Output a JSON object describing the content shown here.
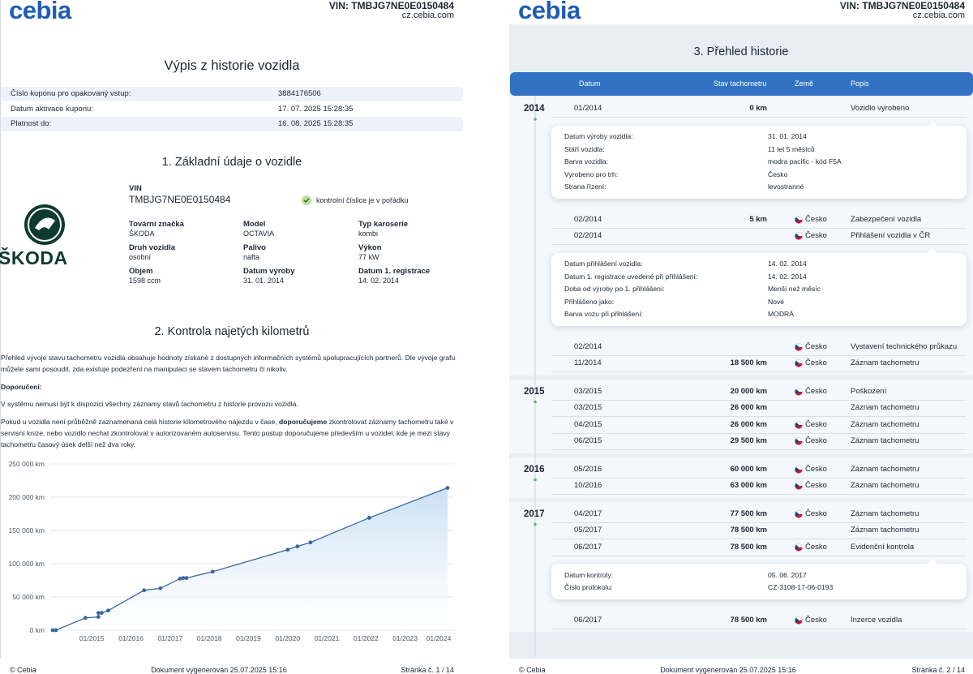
{
  "pages": [
    {
      "logo": "cebia",
      "vin": "VIN: TMBJG7NE0E0150484",
      "site": "cz.cebia.com",
      "footer": {
        "left": "© Cebia",
        "center": "Dokument vygenerován 25.07.2025 15:16",
        "right": "Stránka č. 1 / 14"
      }
    },
    {
      "logo": "cebia",
      "vin": "VIN: TMBJG7NE0E0150484",
      "site": "cz.cebia.com",
      "footer": {
        "left": "© Cebia",
        "center": "Dokument vygenerován 25.07.2025 15:16",
        "right": "Stránka č. 2 / 14"
      }
    }
  ],
  "summary": {
    "title": "Výpis z historie vozidla",
    "rows": [
      [
        "Číslo kuponu pro opakovaný vstup:",
        "3884176506"
      ],
      [
        "Datum aktivace kuponu:",
        "17. 07. 2025 15:28:35"
      ],
      [
        "Platnost do:",
        "16. 08. 2025 15:28:35"
      ]
    ]
  },
  "basic": {
    "title": "1. Základní údaje o vozidle",
    "brand": "ŠKODA",
    "vin_label": "VIN",
    "vin": "TMBJG7NE0E0150484",
    "vin_check": "kontrolní číslice je v pořádku",
    "fields": [
      [
        "Tovární značka",
        "ŠKODA"
      ],
      [
        "Model",
        "OCTAVIA"
      ],
      [
        "Typ karoserie",
        "kombi"
      ],
      [
        "Druh vozidla",
        "osobní"
      ],
      [
        "Palivo",
        "nafta"
      ],
      [
        "Výkon",
        "77 kW"
      ],
      [
        "Objem",
        "1598 ccm"
      ],
      [
        "Datum výroby",
        "31. 01. 2014"
      ],
      [
        "Datum 1. registrace",
        "14. 02. 2014"
      ]
    ]
  },
  "mileage": {
    "title": "2. Kontrola najetých kilometrů",
    "intro": "Přehled vývoje stavu tachometru vozidla obsahuje hodnoty získané z dostupných informačních systémů spolupracujících partnerů. Dle vývoje grafu můžete sami posoudit, zda existuje podezření na manipulaci se stavem tachometru či nikoliv.",
    "recommendation_heading": "Doporučení:",
    "note": "V systému nemusí být k dispozici všechny záznamy stavů tachometru z historie provozu vozidla.",
    "advice": [
      "Pokud u vozidla není průběžně zaznamenaná celá historie kilometrového nájezdu v čase,",
      "doporučujeme",
      "zkontrolovat záznamy tachometru také v servisní knize, nebo vozidlo nechat zkontrolovat v autorizovaném autoservisu. Tento postup doporučujeme především u vozidel, kde je mezi stavy tachometru časový úsek delší než dva roky."
    ]
  },
  "chart_data": {
    "type": "line",
    "color": "#3b679f",
    "grid": true,
    "x": [
      "2014-01",
      "2014-02",
      "2014-11",
      "2015-03",
      "2015-03",
      "2015-04",
      "2015-06",
      "2016-05",
      "2016-10",
      "2017-04",
      "2017-05",
      "2017-06",
      "2018-02",
      "2020-01",
      "2020-04",
      "2020-08",
      "2022-02",
      "2024-02"
    ],
    "values": [
      0,
      5,
      18500,
      20000,
      26000,
      26000,
      29500,
      60000,
      63000,
      77500,
      78500,
      78500,
      88000,
      121000,
      126000,
      132000,
      169000,
      214000
    ],
    "xlim": [
      "2014-01",
      "2024-03"
    ],
    "xticks": [
      {
        "value": "2015-01",
        "label": "01/2015"
      },
      {
        "value": "2016-01",
        "label": "01/2016"
      },
      {
        "value": "2017-01",
        "label": "01/2017"
      },
      {
        "value": "2018-01",
        "label": "01/2018"
      },
      {
        "value": "2019-01",
        "label": "01/2019"
      },
      {
        "value": "2020-01",
        "label": "01/2020"
      },
      {
        "value": "2021-01",
        "label": "01/2021"
      },
      {
        "value": "2022-01",
        "label": "01/2022"
      },
      {
        "value": "2023-01",
        "label": "01/2023"
      },
      {
        "value": "2024-01",
        "label": "01/2024"
      }
    ],
    "ylim": [
      0,
      250000
    ],
    "yticks": [
      {
        "value": 0,
        "label": "0 km"
      },
      {
        "value": 50000,
        "label": "50 000 km"
      },
      {
        "value": 100000,
        "label": "100 000 km"
      },
      {
        "value": 150000,
        "label": "150 000 km"
      },
      {
        "value": 200000,
        "label": "200 000 km"
      },
      {
        "value": 250000,
        "label": "250 000 km"
      }
    ]
  },
  "history": {
    "title": "3. Přehled historie",
    "columns": [
      "Datum",
      "Stav tachometru",
      "Země",
      "Popis"
    ],
    "years": [
      {
        "year": "2014",
        "entries": [
          {
            "date": "01/2014",
            "km": "0 km",
            "desc": "Vozidlo vyrobeno",
            "details": [
              [
                "Datum výroby vozidla:",
                "31. 01. 2014"
              ],
              [
                "Stáří vozidla:",
                "11 let 5 měsíců"
              ],
              [
                "Barva vozidla:",
                "modra pacific - kód F5A"
              ],
              [
                "Vyrobeno pro trh:",
                "Česko"
              ],
              [
                "Strana řízení:",
                "levostranné"
              ]
            ]
          },
          {
            "date": "02/2014",
            "km": "5 km",
            "country": "Česko",
            "desc": "Zabezpečení vozidla"
          },
          {
            "date": "02/2014",
            "country": "Česko",
            "desc": "Přihlášení vozidla v ČR",
            "details": [
              [
                "Datum přihlášení vozidla:",
                "14. 02. 2014"
              ],
              [
                "Datum 1. registrace uvedené při přihlášení:",
                "14. 02. 2014"
              ],
              [
                "Doba od výroby po 1. přihlášení:",
                "Menší než měsíc"
              ],
              [
                "Přihlášeno jako:",
                "Nové"
              ],
              [
                "Barva vozu při přihlášení:",
                "MODRÁ"
              ]
            ]
          },
          {
            "date": "02/2014",
            "country": "Česko",
            "desc": "Vystavení technického průkazu"
          },
          {
            "date": "11/2014",
            "km": "18 500 km",
            "country": "Česko",
            "desc": "Záznam tachometru"
          }
        ]
      },
      {
        "year": "2015",
        "entries": [
          {
            "date": "03/2015",
            "km": "20 000 km",
            "country": "Česko",
            "desc": "Poškození"
          },
          {
            "date": "03/2015",
            "km": "26 000 km",
            "desc": "Záznam tachometru"
          },
          {
            "date": "04/2015",
            "km": "26 000 km",
            "country": "Česko",
            "desc": "Záznam tachometru"
          },
          {
            "date": "06/2015",
            "km": "29 500 km",
            "country": "Česko",
            "desc": "Záznam tachometru"
          }
        ]
      },
      {
        "year": "2016",
        "entries": [
          {
            "date": "05/2016",
            "km": "60 000 km",
            "country": "Česko",
            "desc": "Záznam tachometru"
          },
          {
            "date": "10/2016",
            "km": "63 000 km",
            "country": "Česko",
            "desc": "Záznam tachometru"
          }
        ]
      },
      {
        "year": "2017",
        "entries": [
          {
            "date": "04/2017",
            "km": "77 500 km",
            "country": "Česko",
            "desc": "Záznam tachometru"
          },
          {
            "date": "05/2017",
            "km": "78 500 km",
            "desc": "Záznam tachometru"
          },
          {
            "date": "06/2017",
            "km": "78 500 km",
            "country": "Česko",
            "desc": "Evidenční kontrola",
            "details": [
              [
                "Datum kontroly:",
                "05. 06. 2017"
              ],
              [
                "Číslo protokolu:",
                "CZ-3108-17-06-0193"
              ]
            ]
          },
          {
            "date": "06/2017",
            "km": "78 500 km",
            "country": "Česko",
            "desc": "Inzerce vozidla"
          }
        ]
      }
    ]
  }
}
